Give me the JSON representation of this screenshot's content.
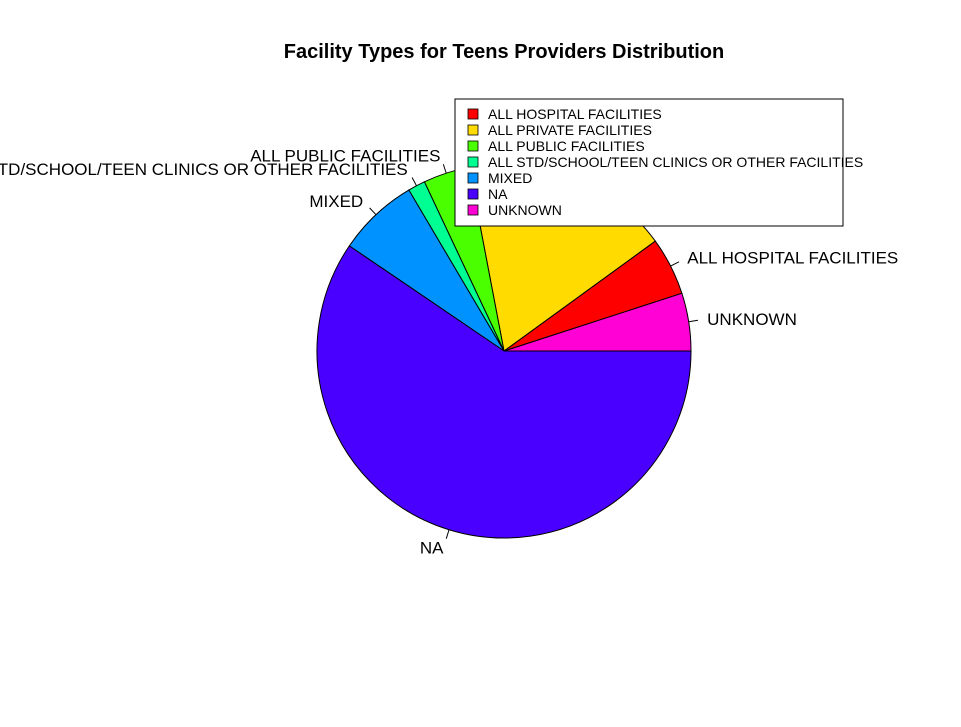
{
  "chart_data": {
    "type": "pie",
    "title": "Facility Types for Teens Providers Distribution",
    "labels": [
      "UNKNOWN",
      "ALL HOSPITAL FACILITIES",
      "ALL PRIVATE FACILITIES",
      "ALL PUBLIC FACILITIES",
      "ALL STD/SCHOOL/TEEN CLINICS OR OTHER FACILITIES",
      "MIXED",
      "NA"
    ],
    "values": [
      5,
      5,
      18,
      4,
      1.5,
      7,
      59.5
    ],
    "colors": [
      "#FF00D5",
      "#FF0000",
      "#FFDB00",
      "#49FF00",
      "#00FF92",
      "#0092FF",
      "#4900FF"
    ],
    "legend": {
      "placement": "top-right",
      "entries": [
        {
          "label": "ALL HOSPITAL FACILITIES",
          "color": "#FF0000"
        },
        {
          "label": "ALL PRIVATE FACILITIES",
          "color": "#FFDB00"
        },
        {
          "label": "ALL PUBLIC FACILITIES",
          "color": "#49FF00"
        },
        {
          "label": "ALL STD/SCHOOL/TEEN CLINICS OR OTHER FACILITIES",
          "color": "#00FF92"
        },
        {
          "label": "MIXED",
          "color": "#0092FF"
        },
        {
          "label": "NA",
          "color": "#4900FF"
        },
        {
          "label": "UNKNOWN",
          "color": "#FF00D5"
        }
      ]
    }
  }
}
